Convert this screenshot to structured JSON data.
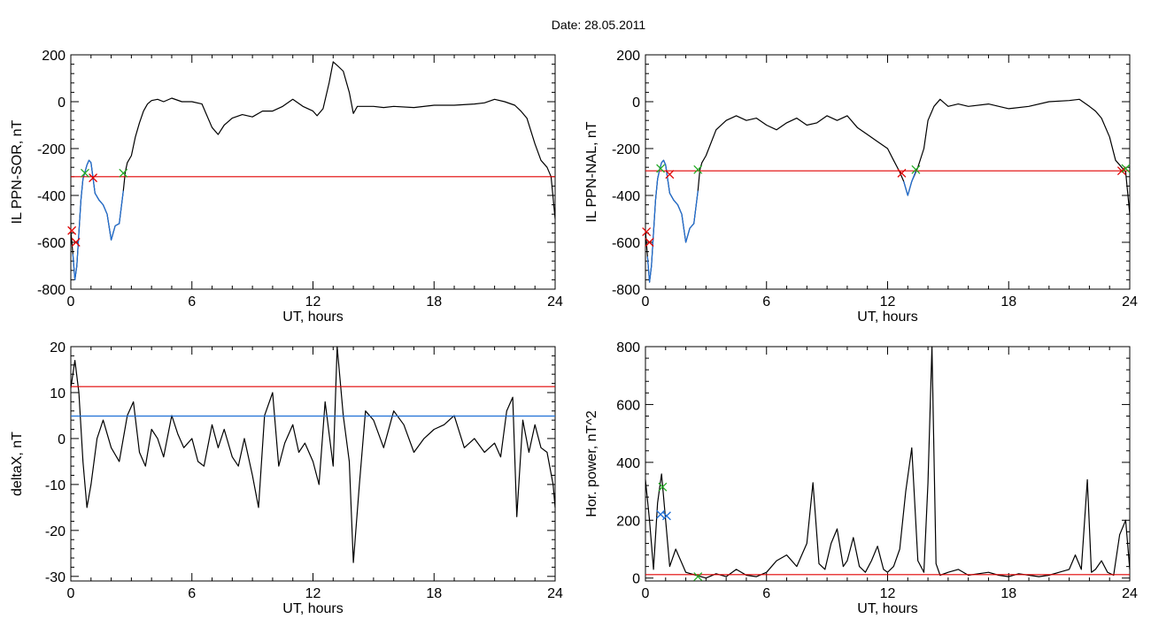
{
  "title": "Date:  28.05.2011",
  "colors": {
    "red": "#e00000",
    "blue": "#1f6fd6",
    "green": "#22aa22",
    "black": "#000000"
  },
  "chart_data": [
    {
      "type": "line",
      "id": "tl",
      "ylabel": "IL PPN-SOR, nT",
      "xlabel": "UT, hours",
      "xlim": [
        0,
        24
      ],
      "ylim": [
        -800,
        200
      ],
      "xticks": [
        0,
        6,
        12,
        18,
        24
      ],
      "yticks": [
        -800,
        -600,
        -400,
        -200,
        0,
        200
      ],
      "series": [
        {
          "color": "black",
          "x": [
            0,
            0.1,
            0.2,
            0.3,
            0.4,
            0.5,
            0.6,
            0.7,
            0.8,
            0.9,
            1.0,
            1.2,
            1.4,
            1.6,
            1.8,
            2.0,
            2.2,
            2.4,
            2.6,
            2.7,
            2.8,
            3.0,
            3.2,
            3.4,
            3.6,
            3.8,
            4.0,
            4.3,
            4.6,
            5.0,
            5.5,
            6.0,
            6.5,
            7.0,
            7.3,
            7.6,
            8.0,
            8.5,
            9.0,
            9.5,
            10.0,
            10.5,
            11.0,
            11.5,
            12.0,
            12.2,
            12.5,
            12.8,
            13.0,
            13.2,
            13.5,
            13.8,
            14.0,
            14.2,
            14.5,
            15.0,
            15.5,
            16.0,
            17.0,
            18.0,
            19.0,
            20.0,
            20.5,
            21.0,
            21.5,
            22.0,
            22.3,
            22.6,
            23.0,
            23.3,
            23.6,
            23.8,
            24.0
          ],
          "y": [
            -550,
            -650,
            -760,
            -700,
            -560,
            -420,
            -330,
            -300,
            -270,
            -250,
            -260,
            -390,
            -420,
            -440,
            -480,
            -590,
            -530,
            -520,
            -380,
            -300,
            -260,
            -230,
            -150,
            -90,
            -40,
            -10,
            5,
            10,
            0,
            15,
            0,
            0,
            -10,
            -110,
            -140,
            -100,
            -70,
            -55,
            -65,
            -40,
            -40,
            -20,
            10,
            -20,
            -40,
            -60,
            -30,
            80,
            170,
            155,
            130,
            40,
            -50,
            -20,
            -20,
            -20,
            -25,
            -20,
            -25,
            -15,
            -15,
            -10,
            -5,
            10,
            0,
            -15,
            -40,
            -70,
            -180,
            -250,
            -280,
            -320,
            -500
          ]
        },
        {
          "color": "blue",
          "x": [
            0.1,
            0.2,
            0.3,
            0.4,
            0.5,
            0.6,
            0.7,
            0.8,
            0.9,
            1.0,
            1.2,
            1.4,
            1.6,
            1.8,
            2.0,
            2.2,
            2.4,
            2.6
          ],
          "y": [
            -650,
            -760,
            -700,
            -560,
            -420,
            -330,
            -300,
            -270,
            -250,
            -260,
            -390,
            -420,
            -440,
            -480,
            -590,
            -530,
            -520,
            -380
          ]
        },
        {
          "color": "red",
          "x": [
            0,
            24
          ],
          "y": [
            -320,
            -320
          ]
        }
      ],
      "markers": [
        {
          "x": 0.05,
          "y": -550,
          "color": "red"
        },
        {
          "x": 0.25,
          "y": -600,
          "color": "red"
        },
        {
          "x": 0.7,
          "y": -305,
          "color": "green"
        },
        {
          "x": 1.1,
          "y": -325,
          "color": "red"
        },
        {
          "x": 2.6,
          "y": -305,
          "color": "green"
        }
      ]
    },
    {
      "type": "line",
      "id": "tr",
      "ylabel": "IL PPN-NAL, nT",
      "xlabel": "UT, hours",
      "xlim": [
        0,
        24
      ],
      "ylim": [
        -800,
        200
      ],
      "xticks": [
        0,
        6,
        12,
        18,
        24
      ],
      "yticks": [
        -800,
        -600,
        -400,
        -200,
        0,
        200
      ],
      "series": [
        {
          "color": "black",
          "x": [
            0,
            0.1,
            0.2,
            0.3,
            0.4,
            0.5,
            0.6,
            0.7,
            0.8,
            0.9,
            1.0,
            1.2,
            1.4,
            1.6,
            1.8,
            2.0,
            2.2,
            2.4,
            2.6,
            2.7,
            2.8,
            3.0,
            3.5,
            4.0,
            4.5,
            5.0,
            5.5,
            6.0,
            6.5,
            7.0,
            7.5,
            8.0,
            8.5,
            9.0,
            9.5,
            10.0,
            10.5,
            11.0,
            11.5,
            12.0,
            12.3,
            12.6,
            12.8,
            13.0,
            13.2,
            13.5,
            13.8,
            14.0,
            14.3,
            14.6,
            15.0,
            15.5,
            16.0,
            17.0,
            18.0,
            19.0,
            20.0,
            21.0,
            21.5,
            22.0,
            22.3,
            22.6,
            23.0,
            23.3,
            23.6,
            23.8,
            24.0
          ],
          "y": [
            -550,
            -660,
            -770,
            -700,
            -560,
            -420,
            -330,
            -290,
            -260,
            -250,
            -270,
            -390,
            -420,
            -440,
            -480,
            -600,
            -540,
            -520,
            -380,
            -290,
            -260,
            -230,
            -120,
            -80,
            -60,
            -80,
            -70,
            -100,
            -120,
            -90,
            -70,
            -100,
            -90,
            -60,
            -80,
            -60,
            -110,
            -140,
            -170,
            -200,
            -250,
            -300,
            -340,
            -400,
            -340,
            -280,
            -200,
            -80,
            -20,
            10,
            -20,
            -10,
            -20,
            -10,
            -30,
            -20,
            0,
            5,
            10,
            -20,
            -40,
            -70,
            -150,
            -250,
            -280,
            -300,
            -480
          ]
        },
        {
          "color": "blue",
          "x": [
            0.1,
            0.2,
            0.3,
            0.4,
            0.5,
            0.6,
            0.7,
            0.8,
            0.9,
            1.0,
            1.2,
            1.4,
            1.6,
            1.8,
            2.0,
            2.2,
            2.4,
            2.6
          ],
          "y": [
            -660,
            -770,
            -700,
            -560,
            -420,
            -330,
            -290,
            -260,
            -250,
            -270,
            -390,
            -420,
            -440,
            -480,
            -600,
            -540,
            -520,
            -380
          ]
        },
        {
          "color": "blue",
          "x": [
            12.8,
            13.0,
            13.2,
            13.4
          ],
          "y": [
            -340,
            -400,
            -340,
            -295
          ]
        },
        {
          "color": "red",
          "x": [
            0,
            24
          ],
          "y": [
            -295,
            -295
          ]
        }
      ],
      "markers": [
        {
          "x": 0.05,
          "y": -555,
          "color": "red"
        },
        {
          "x": 0.2,
          "y": -600,
          "color": "red"
        },
        {
          "x": 0.75,
          "y": -285,
          "color": "green"
        },
        {
          "x": 1.2,
          "y": -310,
          "color": "red"
        },
        {
          "x": 2.6,
          "y": -290,
          "color": "green"
        },
        {
          "x": 12.7,
          "y": -305,
          "color": "red"
        },
        {
          "x": 13.4,
          "y": -290,
          "color": "green"
        },
        {
          "x": 23.6,
          "y": -295,
          "color": "red"
        },
        {
          "x": 23.8,
          "y": -285,
          "color": "green"
        }
      ]
    },
    {
      "type": "line",
      "id": "bl",
      "ylabel": "deltaX, nT",
      "xlabel": "UT, hours",
      "xlim": [
        0,
        24
      ],
      "ylim": [
        -31,
        20
      ],
      "xticks": [
        0,
        6,
        12,
        18,
        24
      ],
      "yticks": [
        -30,
        -20,
        -10,
        0,
        10,
        20
      ],
      "series": [
        {
          "color": "black",
          "x": [
            0,
            0.2,
            0.4,
            0.6,
            0.8,
            1.0,
            1.3,
            1.6,
            2.0,
            2.4,
            2.8,
            3.1,
            3.4,
            3.7,
            4.0,
            4.3,
            4.6,
            5.0,
            5.3,
            5.6,
            6.0,
            6.3,
            6.6,
            7.0,
            7.3,
            7.6,
            8.0,
            8.3,
            8.6,
            9.0,
            9.3,
            9.6,
            10.0,
            10.3,
            10.6,
            11.0,
            11.3,
            11.6,
            12.0,
            12.3,
            12.6,
            13.0,
            13.2,
            13.5,
            13.8,
            14.0,
            14.3,
            14.6,
            15.0,
            15.5,
            16.0,
            16.5,
            17.0,
            17.5,
            18.0,
            18.5,
            19.0,
            19.5,
            20.0,
            20.5,
            21.0,
            21.3,
            21.6,
            21.9,
            22.1,
            22.4,
            22.7,
            23.0,
            23.3,
            23.6,
            23.9,
            24.0
          ],
          "y": [
            11,
            17,
            10,
            -5,
            -15,
            -10,
            0,
            4,
            -2,
            -5,
            5,
            8,
            -3,
            -6,
            2,
            0,
            -4,
            5,
            1,
            -2,
            0,
            -5,
            -6,
            3,
            -2,
            2,
            -4,
            -6,
            0,
            -8,
            -15,
            5,
            10,
            -6,
            -1,
            3,
            -3,
            -1,
            -5,
            -10,
            8,
            -6,
            20,
            5,
            -5,
            -27,
            -10,
            6,
            4,
            -2,
            6,
            3,
            -3,
            0,
            2,
            3,
            5,
            -2,
            0,
            -3,
            -1,
            -4,
            6,
            9,
            -17,
            4,
            -3,
            3,
            -2,
            -3,
            -10,
            -15
          ]
        },
        {
          "color": "red",
          "x": [
            0,
            24
          ],
          "y": [
            11.3,
            11.3
          ]
        },
        {
          "color": "blue",
          "x": [
            0,
            24
          ],
          "y": [
            4.9,
            4.9
          ]
        }
      ],
      "markers": []
    },
    {
      "type": "line",
      "id": "br",
      "ylabel": "Hor. power, nT^2",
      "xlabel": "UT, hours",
      "xlim": [
        0,
        24
      ],
      "ylim": [
        -10,
        800
      ],
      "xticks": [
        0,
        6,
        12,
        18,
        24
      ],
      "yticks": [
        0,
        200,
        400,
        600,
        800
      ],
      "series": [
        {
          "color": "black",
          "x": [
            0,
            0.2,
            0.4,
            0.6,
            0.8,
            1.0,
            1.2,
            1.5,
            2.0,
            2.5,
            3.0,
            3.5,
            4.0,
            4.5,
            5.0,
            5.5,
            6.0,
            6.5,
            7.0,
            7.5,
            8.0,
            8.3,
            8.6,
            8.9,
            9.2,
            9.5,
            9.8,
            10.0,
            10.3,
            10.6,
            10.9,
            11.2,
            11.5,
            11.8,
            12.0,
            12.3,
            12.6,
            12.9,
            13.2,
            13.5,
            13.8,
            14.0,
            14.2,
            14.4,
            14.6,
            15.0,
            15.5,
            16.0,
            16.5,
            17.0,
            17.5,
            18.0,
            18.5,
            19.0,
            19.5,
            20.0,
            20.5,
            21.0,
            21.3,
            21.6,
            21.9,
            22.1,
            22.3,
            22.6,
            22.9,
            23.2,
            23.5,
            23.8,
            24.0
          ],
          "y": [
            340,
            200,
            30,
            260,
            360,
            200,
            40,
            100,
            20,
            10,
            0,
            15,
            5,
            30,
            10,
            5,
            20,
            60,
            80,
            40,
            120,
            330,
            50,
            30,
            120,
            170,
            40,
            60,
            140,
            40,
            20,
            60,
            110,
            30,
            20,
            40,
            100,
            300,
            450,
            60,
            20,
            330,
            800,
            50,
            10,
            20,
            30,
            10,
            15,
            20,
            10,
            5,
            15,
            10,
            5,
            10,
            20,
            30,
            80,
            30,
            340,
            20,
            30,
            60,
            20,
            10,
            150,
            200,
            30
          ]
        },
        {
          "color": "red",
          "x": [
            0,
            24
          ],
          "y": [
            12,
            12
          ]
        }
      ],
      "markers": [
        {
          "x": 0.85,
          "y": 315,
          "color": "green"
        },
        {
          "x": 0.75,
          "y": 220,
          "color": "blue"
        },
        {
          "x": 1.05,
          "y": 215,
          "color": "blue"
        },
        {
          "x": 2.6,
          "y": 5,
          "color": "green"
        }
      ]
    }
  ]
}
